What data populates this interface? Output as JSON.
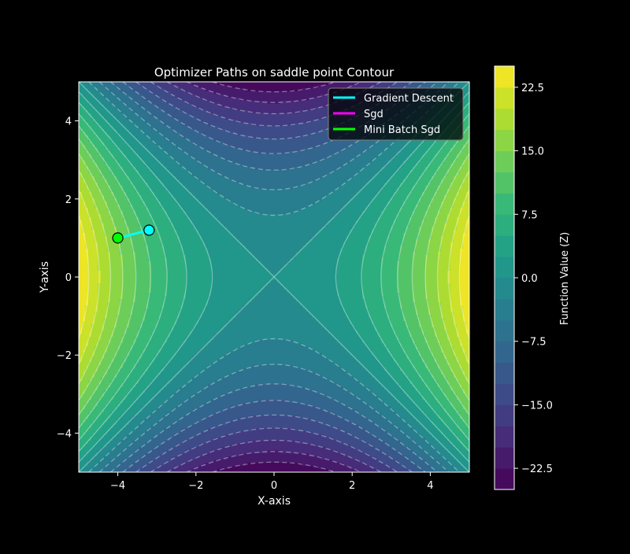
{
  "chart_data": {
    "type": "contour",
    "title": "Optimizer Paths on saddle point Contour",
    "xlabel": "X-axis",
    "ylabel": "Y-axis",
    "xlim": [
      -5,
      5
    ],
    "ylim": [
      -5,
      5
    ],
    "x_ticks": [
      -4,
      -2,
      0,
      2,
      4
    ],
    "y_ticks": [
      -4,
      -2,
      0,
      2,
      4
    ],
    "x_tick_labels": [
      "−4",
      "−2",
      "0",
      "2",
      "4"
    ],
    "y_tick_labels": [
      "−4",
      "−2",
      "0",
      "2",
      "4"
    ],
    "function": "z = x^2 - y^2",
    "z_range": [
      -25,
      25
    ],
    "contour_levels": [
      -25,
      -22.5,
      -20,
      -17.5,
      -15,
      -12.5,
      -10,
      -7.5,
      -5,
      -2.5,
      0,
      2.5,
      5,
      7.5,
      10,
      12.5,
      15,
      17.5,
      20,
      22.5,
      25
    ],
    "colormap": "viridis",
    "colorbar": {
      "label": "Function Value (Z)",
      "ticks": [
        -22.5,
        -15,
        -7.5,
        0,
        7.5,
        15,
        22.5
      ],
      "tick_labels": [
        "−22.5",
        "−15.0",
        "−7.5",
        "0.0",
        "7.5",
        "15.0",
        "22.5"
      ]
    },
    "legend_position": "top-right",
    "series": [
      {
        "name": "Gradient Descent",
        "color": "#00ffff",
        "points": [
          [
            -3.2,
            1.2
          ],
          [
            -4.0,
            1.0
          ]
        ],
        "marker": true
      },
      {
        "name": "Sgd",
        "color": "#ff00ff",
        "points": [],
        "marker": false
      },
      {
        "name": "Mini Batch Sgd",
        "color": "#00ff00",
        "points": [
          [
            -4.0,
            1.0
          ]
        ],
        "marker": true
      }
    ]
  }
}
